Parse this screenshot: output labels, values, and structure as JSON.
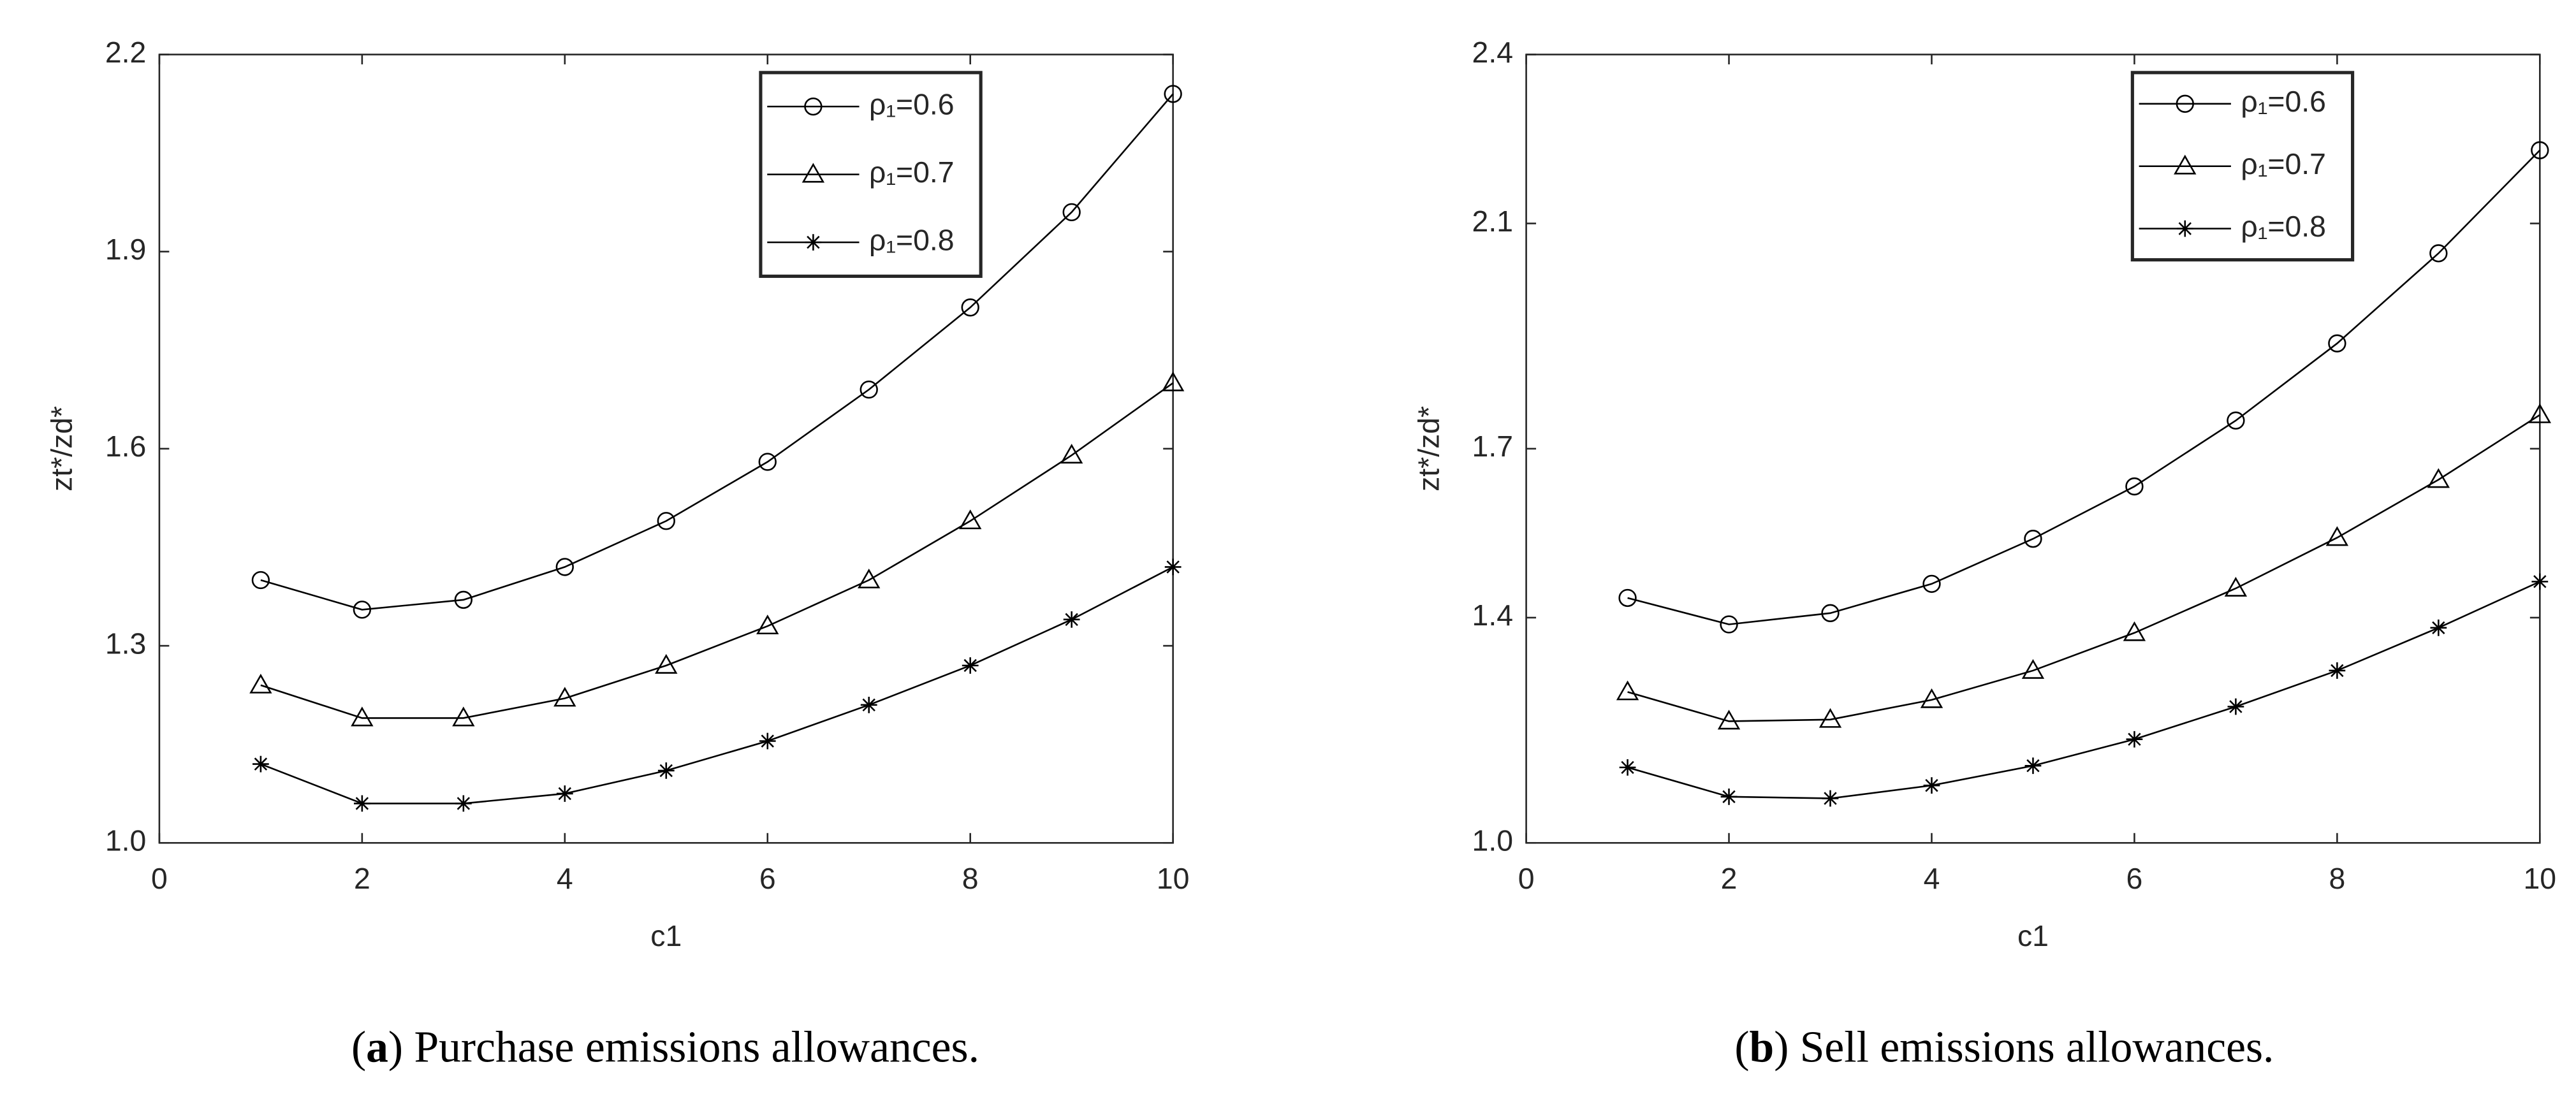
{
  "chart_data": [
    {
      "type": "line",
      "caption_label": "a",
      "caption": "Purchase emissions allowances.",
      "xlabel": "c1",
      "ylabel": "zt*/zd*",
      "x": [
        1,
        2,
        3,
        4,
        5,
        6,
        7,
        8,
        9,
        10
      ],
      "xlim": [
        0,
        10
      ],
      "xticks": [
        0,
        2,
        4,
        6,
        8,
        10
      ],
      "ylim": [
        1.0,
        2.2
      ],
      "yticks": [
        {
          "value": 1.0,
          "label": "1.0"
        },
        1.3,
        1.6,
        1.9,
        2.2
      ],
      "legend": "upper-right",
      "series": [
        {
          "name": "ρ₁=0.6",
          "color": "#000000",
          "marker": "circle",
          "values": [
            1.4,
            1.355,
            1.37,
            1.42,
            1.49,
            1.58,
            1.69,
            1.815,
            1.96,
            2.14
          ]
        },
        {
          "name": "ρ₁=0.7",
          "color": "#000000",
          "marker": "triangle",
          "values": [
            1.24,
            1.19,
            1.19,
            1.22,
            1.27,
            1.33,
            1.4,
            1.49,
            1.59,
            1.7
          ]
        },
        {
          "name": "ρ₁=0.8",
          "color": "#000000",
          "marker": "star",
          "values": [
            1.12,
            1.06,
            1.06,
            1.075,
            1.11,
            1.155,
            1.21,
            1.27,
            1.34,
            1.42
          ]
        }
      ]
    },
    {
      "type": "line",
      "caption_label": "b",
      "caption": "Sell emissions allowances.",
      "xlabel": "c1",
      "ylabel": "zt*/zd*",
      "x": [
        1,
        2,
        3,
        4,
        5,
        6,
        7,
        8,
        9,
        10
      ],
      "xlim": [
        0,
        10
      ],
      "xticks": [
        0,
        2,
        4,
        6,
        8,
        10
      ],
      "ylim": [
        1.0,
        2.4
      ],
      "yticks": [
        {
          "value": 1.0,
          "label": "1.0"
        },
        1.4,
        1.7,
        2.1,
        2.4
      ],
      "legend": "upper-right",
      "series": [
        {
          "name": "ρ₁=0.6",
          "color": "#000000",
          "marker": "circle",
          "values": [
            1.435,
            1.388,
            1.408,
            1.46,
            1.54,
            1.633,
            1.75,
            1.887,
            2.047,
            2.23
          ]
        },
        {
          "name": "ρ₁=0.7",
          "color": "#000000",
          "marker": "triangle",
          "values": [
            1.268,
            1.216,
            1.219,
            1.254,
            1.306,
            1.373,
            1.452,
            1.542,
            1.645,
            1.76
          ]
        },
        {
          "name": "ρ₁=0.8",
          "color": "#000000",
          "marker": "star",
          "values": [
            1.134,
            1.082,
            1.079,
            1.102,
            1.137,
            1.184,
            1.242,
            1.306,
            1.382,
            1.464
          ]
        }
      ]
    }
  ]
}
